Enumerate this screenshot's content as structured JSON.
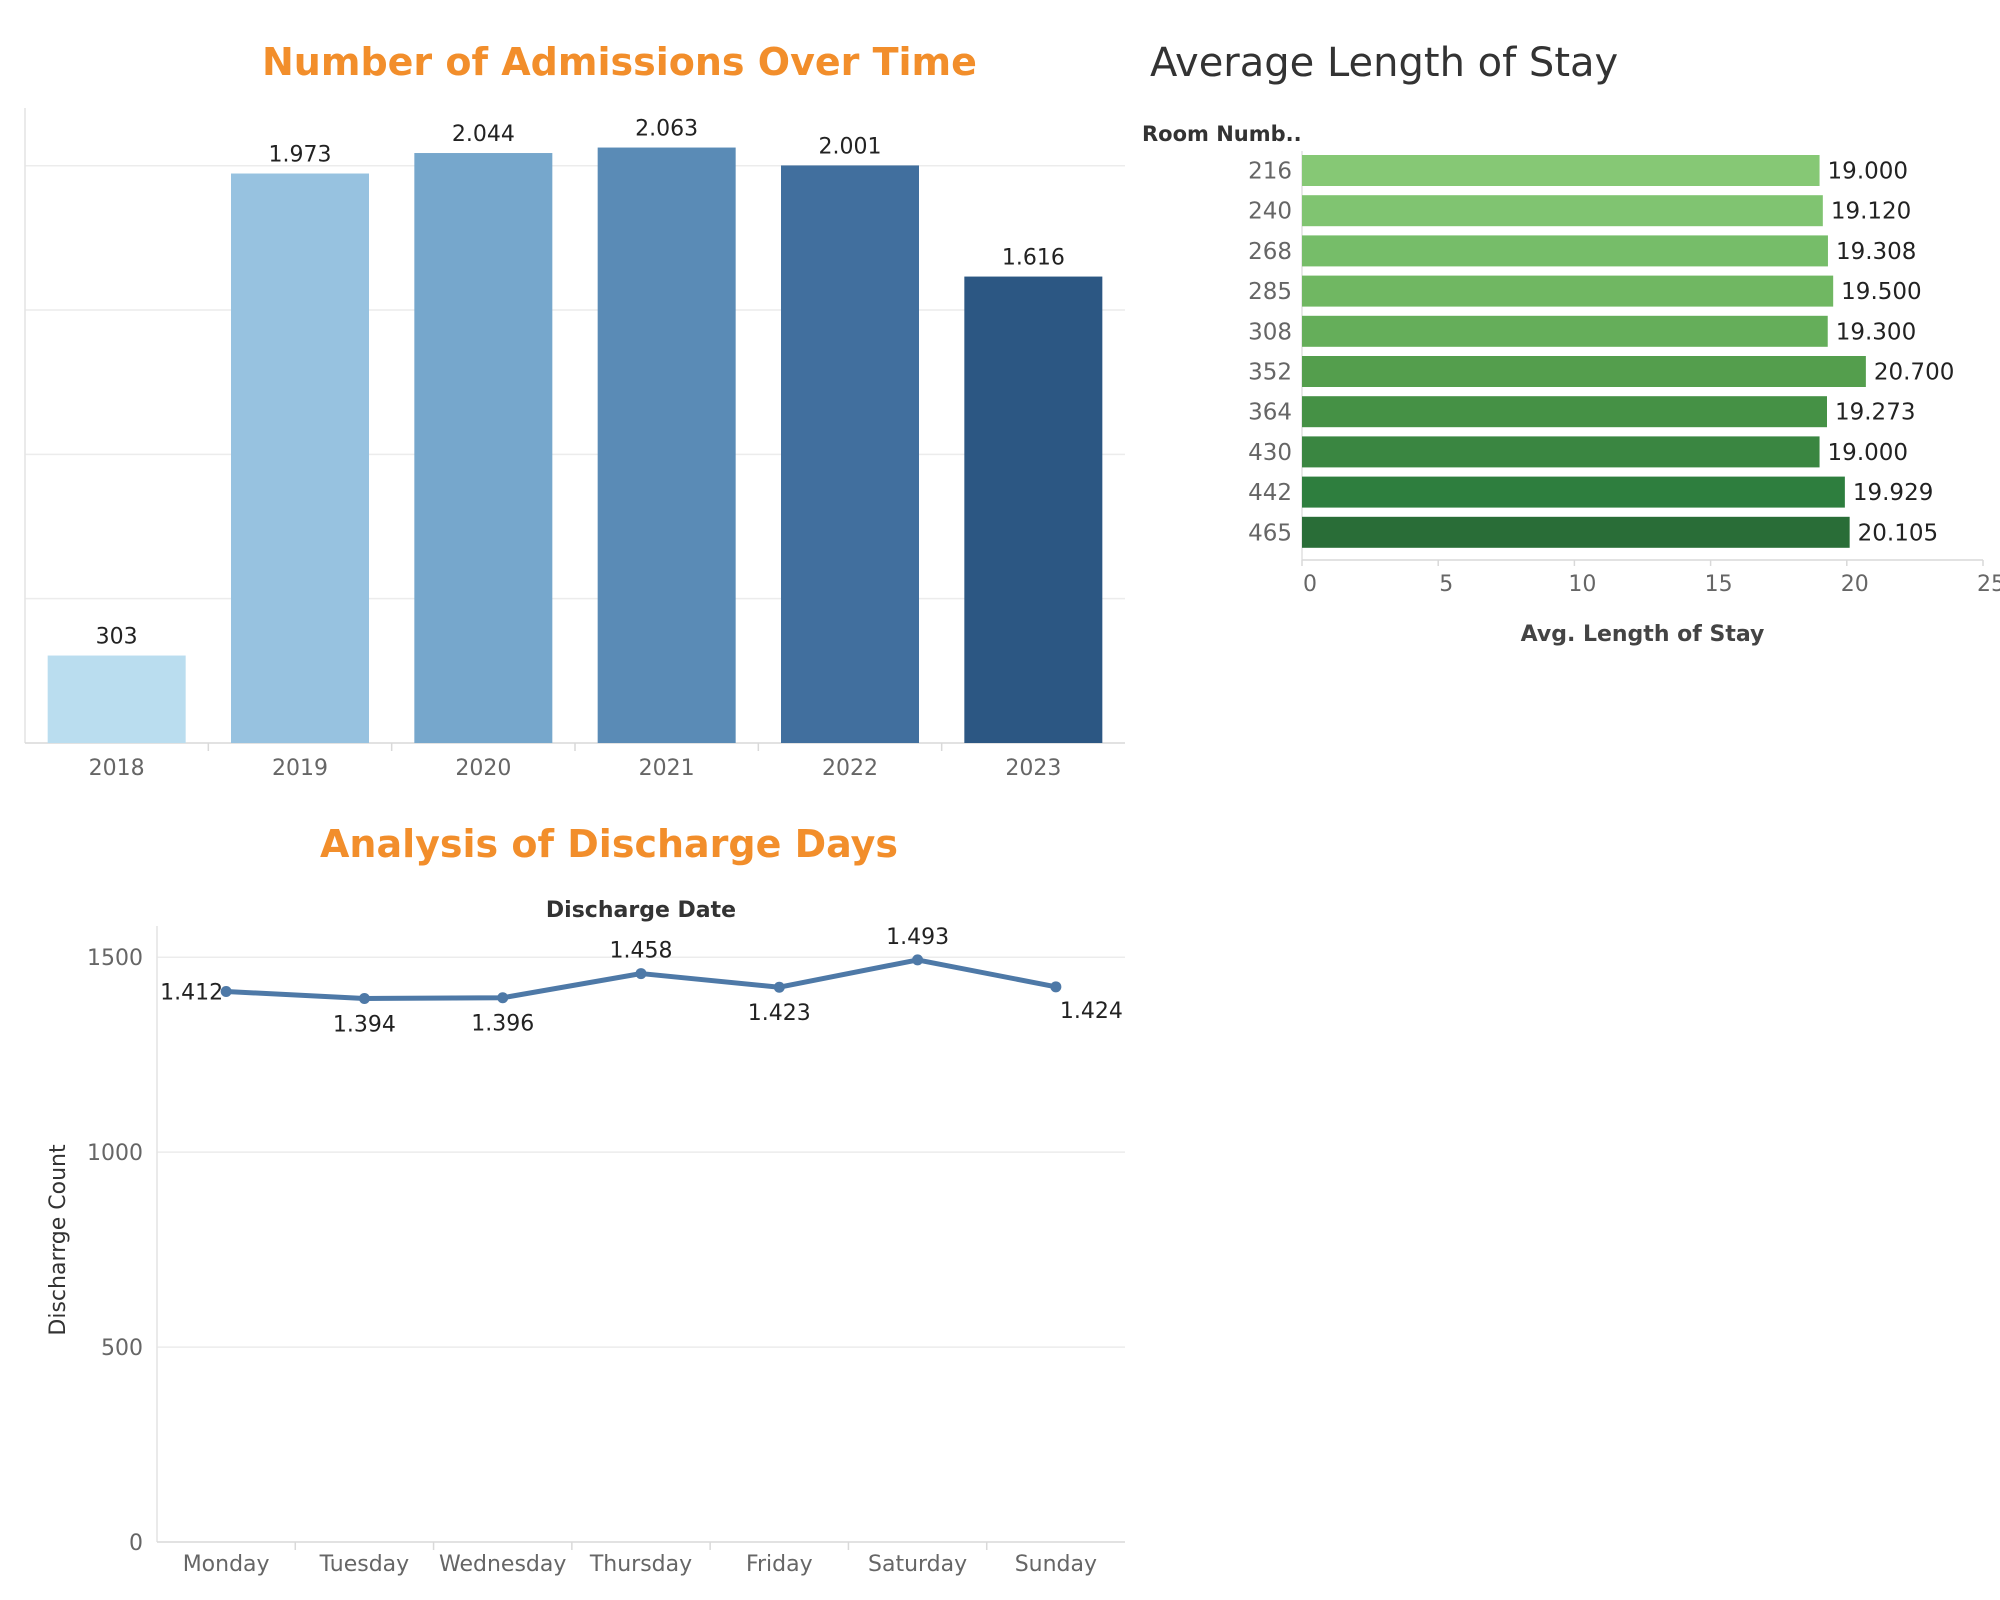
{
  "chart_data": [
    {
      "type": "bar",
      "title": "Number of Admissions Over Time",
      "categories": [
        "2018",
        "2019",
        "2020",
        "2021",
        "2022",
        "2023"
      ],
      "values": [
        303,
        1973,
        2044,
        2063,
        2001,
        1616
      ],
      "value_labels": [
        "303",
        "1.973",
        "2.044",
        "2.063",
        "2.001",
        "1.616"
      ],
      "ylim": [
        0,
        2200
      ],
      "grid": true,
      "colors": [
        "#BADDEF",
        "#97C2E0",
        "#76A7CC",
        "#5A8BB6",
        "#416F9E",
        "#2C5783"
      ]
    },
    {
      "type": "bar",
      "orientation": "horizontal",
      "title": "Average Length of Stay",
      "row_header": "Room Numb..",
      "xlabel": "Avg. Length of Stay",
      "categories": [
        "216",
        "240",
        "268",
        "285",
        "308",
        "352",
        "364",
        "430",
        "442",
        "465"
      ],
      "values": [
        19.0,
        19.12,
        19.308,
        19.5,
        19.3,
        20.7,
        19.273,
        19.0,
        19.929,
        20.105
      ],
      "value_labels": [
        "19.000",
        "19.120",
        "19.308",
        "19.500",
        "19.300",
        "20.700",
        "19.273",
        "19.000",
        "19.929",
        "20.105"
      ],
      "xlim": [
        0,
        25
      ],
      "xticks": [
        "0",
        "5",
        "10",
        "15",
        "20",
        "25"
      ],
      "colors": [
        "#86C875",
        "#80C471",
        "#76BD69",
        "#70B762",
        "#65AE5A",
        "#549E4D",
        "#459145",
        "#3A8641",
        "#2E7E3E",
        "#296D37"
      ]
    },
    {
      "type": "line",
      "title": "Analysis of Discharge Days",
      "xlabel": "Discharge Date",
      "ylabel": "Discharrge Count",
      "categories": [
        "Monday",
        "Tuesday",
        "Wednesday",
        "Thursday",
        "Friday",
        "Saturday",
        "Sunday"
      ],
      "values": [
        1412,
        1394,
        1396,
        1458,
        1423,
        1493,
        1424
      ],
      "value_labels": [
        "1.412",
        "1.394",
        "1.396",
        "1.458",
        "1.423",
        "1.493",
        "1.424"
      ],
      "ylim": [
        0,
        1580
      ],
      "yticks": [
        "0",
        "500",
        "1000",
        "1500"
      ],
      "grid": true,
      "color": "#4E79A7"
    }
  ]
}
